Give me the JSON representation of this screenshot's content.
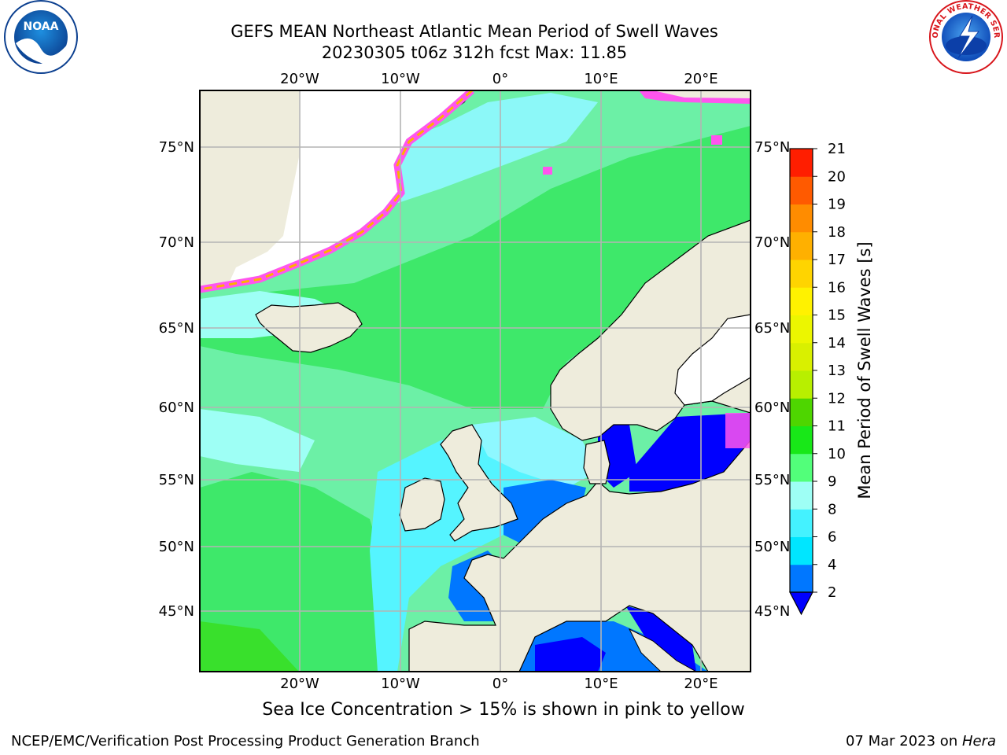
{
  "header": {
    "title": "GEFS MEAN Northeast Atlantic Mean Period of Swell Waves",
    "subtitle": "20230305 t06z 312h fcst   Max: 11.85"
  },
  "map": {
    "lon_range": [
      -30,
      25
    ],
    "lat_range": [
      41,
      78
    ],
    "lon_ticks": [
      {
        "value": -20,
        "label": "20°W"
      },
      {
        "value": -10,
        "label": "10°W"
      },
      {
        "value": 0,
        "label": "0°"
      },
      {
        "value": 10,
        "label": "10°E"
      },
      {
        "value": 20,
        "label": "20°E"
      }
    ],
    "lat_ticks": [
      {
        "value": 45,
        "label": "45°N"
      },
      {
        "value": 50,
        "label": "50°N"
      },
      {
        "value": 55,
        "label": "55°N"
      },
      {
        "value": 60,
        "label": "60°N"
      },
      {
        "value": 65,
        "label": "65°N"
      },
      {
        "value": 70,
        "label": "70°N"
      },
      {
        "value": 75,
        "label": "75°N"
      }
    ],
    "colors": {
      "ocean_background": "#6cf0a6",
      "land": "#eeecdc",
      "grid": "#b4b4b4"
    }
  },
  "colorbar": {
    "label": "Mean Period of Swell Waves [s]",
    "levels": [
      2,
      4,
      6,
      8,
      9,
      10,
      11,
      12,
      13,
      14,
      15,
      16,
      17,
      18,
      19,
      20,
      21
    ],
    "colors": [
      "#0077ff",
      "#00e6ff",
      "#44f2ff",
      "#9efff5",
      "#52ff7a",
      "#18e818",
      "#4ed600",
      "#b8ef00",
      "#d9f000",
      "#ecf600",
      "#fff200",
      "#ffd400",
      "#ffb000",
      "#ff8c00",
      "#ff5a00",
      "#ff1e00"
    ],
    "under_color": "#0000ff"
  },
  "caption": "Sea Ice Concentration > 15% is shown in pink to yellow",
  "footer": {
    "left": "NCEP/EMC/Verification Post Processing Product Generation Branch",
    "right_prefix": "07 Mar 2023 on ",
    "right_machine": "Hera"
  },
  "logos": {
    "noaa_text": "NOAA",
    "nws_text": "NATIONAL WEATHER SERVICE"
  }
}
